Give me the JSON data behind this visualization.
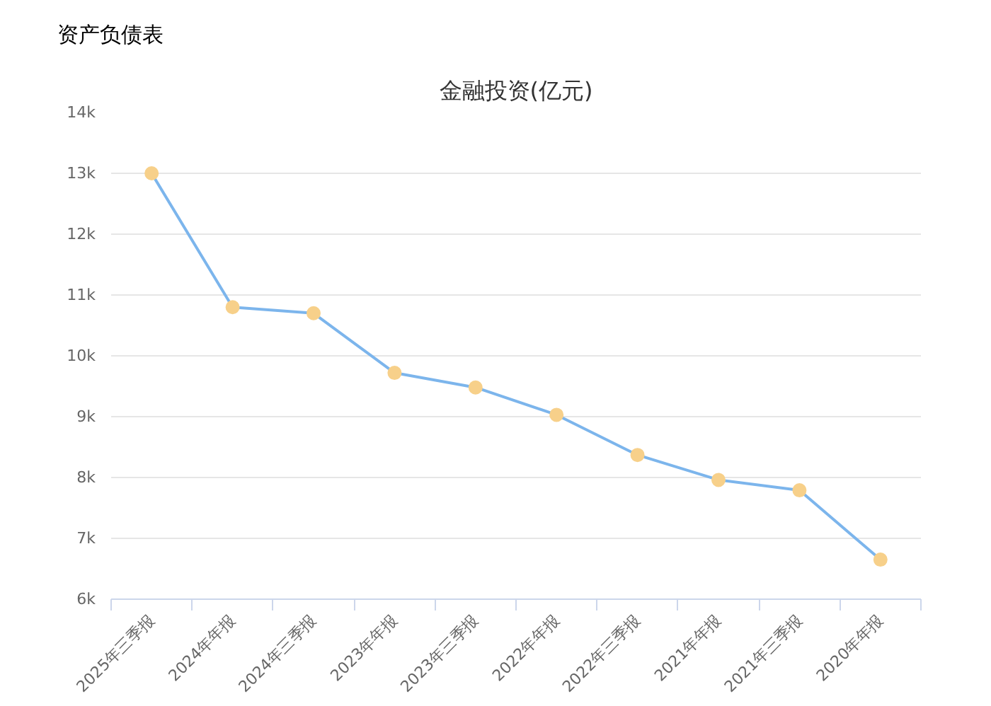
{
  "chart_data": {
    "type": "line",
    "title": "资产负债表",
    "subtitle": "金融投资(亿元)",
    "categories": [
      "2025年三季报",
      "2024年年报",
      "2024年三季报",
      "2023年年报",
      "2023年三季报",
      "2022年年报",
      "2022年三季报",
      "2021年年报",
      "2021年三季报",
      "2020年年报"
    ],
    "series": [
      {
        "color": "#7cb5ec",
        "colors": [
          "#f7d08a",
          "#f7d08a",
          "#f7d08a",
          "#f7d08a",
          "#f7d08a",
          "#f7d08a",
          "#f7d08a",
          "#f7d08a",
          "#f7d08a",
          "#f7d08a"
        ],
        "values": [
          13000,
          10800,
          10700,
          9720,
          9480,
          9030,
          8370,
          7960,
          7790,
          6650
        ]
      }
    ],
    "ylim": [
      6000,
      14000
    ],
    "yticks": [
      {
        "value": 6000,
        "label": "6k"
      },
      {
        "value": 7000,
        "label": "7k"
      },
      {
        "value": 8000,
        "label": "8k"
      },
      {
        "value": 9000,
        "label": "9k"
      },
      {
        "value": 10000,
        "label": "10k"
      },
      {
        "value": 11000,
        "label": "11k"
      },
      {
        "value": 12000,
        "label": "12k"
      },
      {
        "value": 13000,
        "label": "13k"
      },
      {
        "value": 14000,
        "label": "14k"
      }
    ],
    "grid": "y",
    "marker": "circle",
    "line_style": "solid"
  }
}
